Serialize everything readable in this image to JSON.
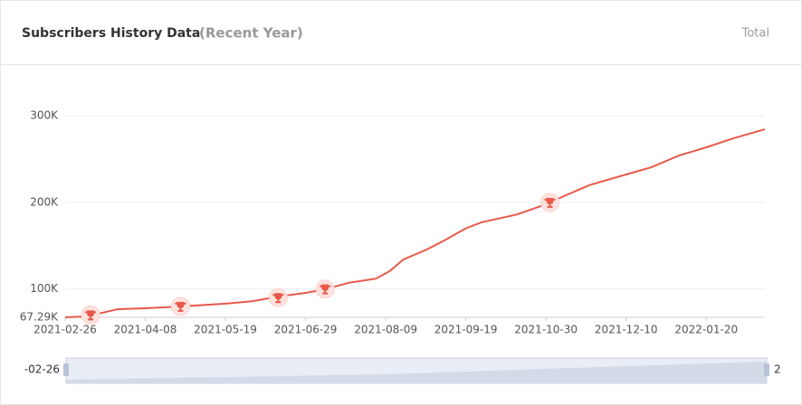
{
  "chart_data": {
    "type": "line",
    "title": "Subscribers History Data",
    "subtitle": "(Recent Year)",
    "mode_label": "Total",
    "x": [
      "2021-02-26",
      "2021-03-09",
      "2021-03-25",
      "2021-04-08",
      "2021-04-26",
      "2021-05-19",
      "2021-06-02",
      "2021-06-15",
      "2021-06-29",
      "2021-07-09",
      "2021-07-21",
      "2021-08-04",
      "2021-08-11",
      "2021-08-18",
      "2021-08-30",
      "2021-09-08",
      "2021-09-19",
      "2021-09-27",
      "2021-10-15",
      "2021-10-30",
      "2021-11-07",
      "2021-11-21",
      "2021-12-10",
      "2021-12-23",
      "2022-01-06",
      "2022-01-20",
      "2022-02-03",
      "2022-02-19"
    ],
    "series": [
      {
        "color": "#e8594a",
        "values": [
          67290,
          68300,
          76700,
          77700,
          79800,
          83000,
          86000,
          91300,
          95500,
          99600,
          107000,
          112000,
          120500,
          134000,
          145600,
          156000,
          170000,
          177000,
          185900,
          197800,
          206000,
          219700,
          232200,
          240600,
          254000,
          263500,
          274000,
          284400
        ]
      }
    ],
    "milestones": {
      "x": [
        "2021-03-11",
        "2021-04-26",
        "2021-06-15",
        "2021-07-09",
        "2021-11-01"
      ],
      "values": [
        70000,
        80000,
        90000,
        100000,
        200000
      ],
      "color": "#e8594a"
    },
    "xlim": [
      "2021-02-26",
      "2022-02-19"
    ],
    "xticks": [
      "2021-02-26",
      "2021-04-08",
      "2021-05-19",
      "2021-06-29",
      "2021-08-09",
      "2021-09-19",
      "2021-10-30",
      "2021-12-10",
      "2022-01-20"
    ],
    "ylim": [
      67290,
      300000
    ],
    "yticks": [
      {
        "value": 67290,
        "label": "67.29K"
      },
      {
        "value": 100000,
        "label": "100K"
      },
      {
        "value": 200000,
        "label": "200K"
      },
      {
        "value": 300000,
        "label": "300K"
      }
    ],
    "grid": true,
    "zoom_start_label": "-02-26",
    "zoom_end_label": "2"
  }
}
